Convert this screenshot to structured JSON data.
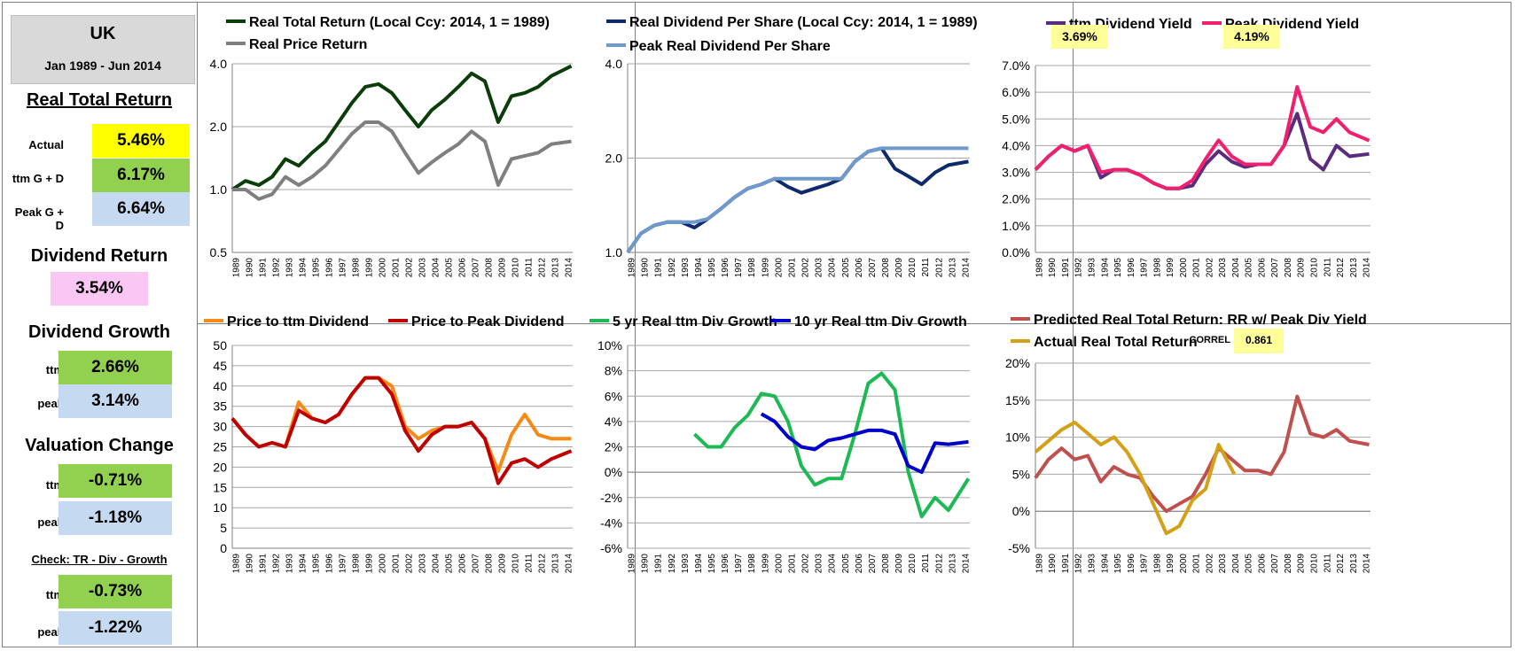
{
  "sidebar": {
    "country": "UK",
    "period": "Jan 1989 - Jun 2014",
    "real_total_return": {
      "title": "Real Total Return",
      "actual_label": "Actual",
      "actual": "5.46%",
      "ttm_label": "ttm  G + D",
      "ttm": "6.17%",
      "peak_label": "Peak  G + D",
      "peak": "6.64%"
    },
    "dividend_return": {
      "title": "Dividend Return",
      "value": "3.54%"
    },
    "dividend_growth": {
      "title": "Dividend Growth",
      "ttm_label": "ttm",
      "ttm": "2.66%",
      "peak_label": "peak",
      "peak": "3.14%"
    },
    "valuation_change": {
      "title": "Valuation Change",
      "ttm_label": "ttm",
      "ttm": "-0.71%",
      "peak_label": "peak",
      "peak": "-1.18%"
    },
    "check": {
      "title": "Check: TR - Div - Growth",
      "ttm_label": "ttm",
      "ttm": "-0.73%",
      "peak_label": "peak",
      "peak": "-1.22%"
    }
  },
  "colors": {
    "dark_green": "#0b3d0b",
    "gray": "#7f7f7f",
    "navy": "#0f2a6b",
    "light_blue": "#6f98cc",
    "purple": "#5b2c7e",
    "pink": "#f0206e",
    "orange": "#f58a16",
    "dark_red": "#c00000",
    "green": "#1db954",
    "blue": "#0000cc",
    "rose": "#c0504d",
    "gold": "#d4a017",
    "yellow_note": "#ffff99"
  },
  "years": [
    "1989",
    "1990",
    "1991",
    "1992",
    "1993",
    "1994",
    "1995",
    "1996",
    "1997",
    "1998",
    "1999",
    "2000",
    "2001",
    "2002",
    "2003",
    "2004",
    "2005",
    "2006",
    "2007",
    "2008",
    "2009",
    "2010",
    "2011",
    "2012",
    "2013",
    "2014"
  ],
  "chart_data": [
    {
      "id": "c1",
      "type": "line",
      "scale": "log",
      "ylim": [
        0.5,
        4.0
      ],
      "yticks": [
        0.5,
        1.0,
        2.0,
        4.0
      ],
      "ytick_labels": [
        "0.5",
        "1.0",
        "2.0",
        "4.0"
      ],
      "series": [
        {
          "name": "Real Total Return (Local Ccy: 2014, 1 = 1989)",
          "color": "#0b3d0b",
          "x": [
            1989,
            1990,
            1991,
            1992,
            1993,
            1994,
            1995,
            1996,
            1997,
            1998,
            1999,
            2000,
            2001,
            2002,
            2003,
            2004,
            2005,
            2006,
            2007,
            2008,
            2009,
            2010,
            2011,
            2012,
            2013,
            2014.5
          ],
          "y": [
            1.0,
            1.1,
            1.05,
            1.15,
            1.4,
            1.3,
            1.5,
            1.7,
            2.1,
            2.6,
            3.1,
            3.2,
            2.9,
            2.4,
            2.0,
            2.4,
            2.7,
            3.1,
            3.6,
            3.3,
            2.1,
            2.8,
            2.9,
            3.1,
            3.5,
            3.9
          ]
        },
        {
          "name": "Real Price Return",
          "color": "#7f7f7f",
          "x": [
            1989,
            1990,
            1991,
            1992,
            1993,
            1994,
            1995,
            1996,
            1997,
            1998,
            1999,
            2000,
            2001,
            2002,
            2003,
            2004,
            2005,
            2006,
            2007,
            2008,
            2009,
            2010,
            2011,
            2012,
            2013,
            2014.5
          ],
          "y": [
            1.0,
            1.0,
            0.9,
            0.95,
            1.15,
            1.05,
            1.15,
            1.3,
            1.55,
            1.85,
            2.1,
            2.1,
            1.9,
            1.5,
            1.2,
            1.35,
            1.5,
            1.65,
            1.9,
            1.7,
            1.05,
            1.4,
            1.45,
            1.5,
            1.65,
            1.7
          ]
        }
      ]
    },
    {
      "id": "c2",
      "type": "line",
      "scale": "log",
      "ylim": [
        1.0,
        4.0
      ],
      "yticks": [
        1.0,
        2.0,
        4.0
      ],
      "ytick_labels": [
        "1.0",
        "2.0",
        "4.0"
      ],
      "series": [
        {
          "name": "Real Dividend Per Share (Local Ccy: 2014, 1 = 1989)",
          "color": "#0f2a6b",
          "x": [
            1989,
            1990,
            1991,
            1992,
            1993,
            1994,
            1995,
            1996,
            1997,
            1998,
            1999,
            2000,
            2001,
            2002,
            2003,
            2004,
            2005,
            2006,
            2007,
            2008,
            2009,
            2010,
            2011,
            2012,
            2013,
            2014.5
          ],
          "y": [
            1.0,
            1.15,
            1.22,
            1.25,
            1.25,
            1.2,
            1.28,
            1.38,
            1.5,
            1.6,
            1.65,
            1.72,
            1.62,
            1.55,
            1.6,
            1.65,
            1.72,
            1.95,
            2.1,
            2.15,
            1.85,
            1.75,
            1.65,
            1.8,
            1.9,
            1.95
          ]
        },
        {
          "name": "Peak Real Dividend Per Share",
          "color": "#6f98cc",
          "x": [
            1989,
            1990,
            1991,
            1992,
            1993,
            1994,
            1995,
            1996,
            1997,
            1998,
            1999,
            2000,
            2001,
            2002,
            2003,
            2004,
            2005,
            2006,
            2007,
            2008,
            2009,
            2010,
            2011,
            2012,
            2013,
            2014.5
          ],
          "y": [
            1.0,
            1.15,
            1.22,
            1.25,
            1.25,
            1.25,
            1.28,
            1.38,
            1.5,
            1.6,
            1.65,
            1.72,
            1.72,
            1.72,
            1.72,
            1.72,
            1.72,
            1.95,
            2.1,
            2.15,
            2.15,
            2.15,
            2.15,
            2.15,
            2.15,
            2.15
          ]
        }
      ]
    },
    {
      "id": "c3",
      "type": "line",
      "scale": "linear",
      "ylim": [
        0,
        0.07
      ],
      "yticks": [
        0,
        0.01,
        0.02,
        0.03,
        0.04,
        0.05,
        0.06,
        0.07
      ],
      "ytick_labels": [
        "0.0%",
        "1.0%",
        "2.0%",
        "3.0%",
        "4.0%",
        "5.0%",
        "6.0%",
        "7.0%"
      ],
      "annotations": [
        "3.69%",
        "4.19%"
      ],
      "series": [
        {
          "name": "ttm Dividend Yield",
          "color": "#5b2c7e",
          "x": [
            1989,
            1990,
            1991,
            1992,
            1993,
            1994,
            1995,
            1996,
            1997,
            1998,
            1999,
            2000,
            2001,
            2002,
            2003,
            2004,
            2005,
            2006,
            2007,
            2008,
            2009,
            2010,
            2011,
            2012,
            2013,
            2014.5
          ],
          "y": [
            0.031,
            0.036,
            0.04,
            0.038,
            0.04,
            0.028,
            0.031,
            0.031,
            0.029,
            0.026,
            0.024,
            0.024,
            0.025,
            0.033,
            0.038,
            0.034,
            0.032,
            0.033,
            0.033,
            0.04,
            0.052,
            0.035,
            0.031,
            0.04,
            0.036,
            0.0369
          ]
        },
        {
          "name": "Peak Dividend Yield",
          "color": "#f0206e",
          "x": [
            1989,
            1990,
            1991,
            1992,
            1993,
            1994,
            1995,
            1996,
            1997,
            1998,
            1999,
            2000,
            2001,
            2002,
            2003,
            2004,
            2005,
            2006,
            2007,
            2008,
            2009,
            2010,
            2011,
            2012,
            2013,
            2014.5
          ],
          "y": [
            0.031,
            0.036,
            0.04,
            0.038,
            0.04,
            0.03,
            0.031,
            0.031,
            0.029,
            0.026,
            0.024,
            0.024,
            0.027,
            0.035,
            0.042,
            0.036,
            0.033,
            0.033,
            0.033,
            0.04,
            0.062,
            0.047,
            0.045,
            0.05,
            0.045,
            0.0419
          ]
        }
      ]
    },
    {
      "id": "c4",
      "type": "line",
      "scale": "linear",
      "ylim": [
        0,
        50
      ],
      "yticks": [
        0,
        5,
        10,
        15,
        20,
        25,
        30,
        35,
        40,
        45,
        50
      ],
      "ytick_labels": [
        "0",
        "5",
        "10",
        "15",
        "20",
        "25",
        "30",
        "35",
        "40",
        "45",
        "50"
      ],
      "series": [
        {
          "name": "Price to ttm Dividend",
          "color": "#f58a16",
          "x": [
            1989,
            1990,
            1991,
            1992,
            1993,
            1994,
            1995,
            1996,
            1997,
            1998,
            1999,
            2000,
            2001,
            2002,
            2003,
            2004,
            2005,
            2006,
            2007,
            2008,
            2009,
            2010,
            2011,
            2012,
            2013,
            2014.5
          ],
          "y": [
            32,
            28,
            25,
            26,
            25,
            36,
            32,
            31,
            33,
            38,
            42,
            42,
            40,
            30,
            27,
            29,
            30,
            30,
            31,
            27,
            19,
            28,
            33,
            28,
            27,
            27
          ]
        },
        {
          "name": "Price to Peak Dividend",
          "color": "#c00000",
          "x": [
            1989,
            1990,
            1991,
            1992,
            1993,
            1994,
            1995,
            1996,
            1997,
            1998,
            1999,
            2000,
            2001,
            2002,
            2003,
            2004,
            2005,
            2006,
            2007,
            2008,
            2009,
            2010,
            2011,
            2012,
            2013,
            2014.5
          ],
          "y": [
            32,
            28,
            25,
            26,
            25,
            34,
            32,
            31,
            33,
            38,
            42,
            42,
            38,
            29,
            24,
            28,
            30,
            30,
            31,
            27,
            16,
            21,
            22,
            20,
            22,
            24
          ]
        }
      ]
    },
    {
      "id": "c5",
      "type": "line",
      "scale": "linear",
      "ylim": [
        -0.06,
        0.1
      ],
      "yticks": [
        -0.06,
        -0.04,
        -0.02,
        0,
        0.02,
        0.04,
        0.06,
        0.08,
        0.1
      ],
      "ytick_labels": [
        "-6%",
        "-4%",
        "-2%",
        "0%",
        "2%",
        "4%",
        "6%",
        "8%",
        "10%"
      ],
      "series": [
        {
          "name": "5 yr Real ttm Div Growth",
          "color": "#1db954",
          "x": [
            1994,
            1995,
            1996,
            1997,
            1998,
            1999,
            2000,
            2001,
            2002,
            2003,
            2004,
            2005,
            2006,
            2007,
            2008,
            2009,
            2010,
            2011,
            2012,
            2013,
            2014.5
          ],
          "y": [
            0.03,
            0.02,
            0.02,
            0.035,
            0.045,
            0.062,
            0.06,
            0.04,
            0.005,
            -0.01,
            -0.005,
            -0.005,
            0.03,
            0.07,
            0.078,
            0.065,
            0.0,
            -0.035,
            -0.02,
            -0.03,
            -0.005
          ]
        },
        {
          "name": "10 yr Real ttm Div Growth",
          "color": "#0000cc",
          "x": [
            1999,
            2000,
            2001,
            2002,
            2003,
            2004,
            2005,
            2006,
            2007,
            2008,
            2009,
            2010,
            2011,
            2012,
            2013,
            2014.5
          ],
          "y": [
            0.046,
            0.04,
            0.028,
            0.02,
            0.018,
            0.025,
            0.027,
            0.03,
            0.033,
            0.033,
            0.03,
            0.005,
            0.0,
            0.023,
            0.022,
            0.024
          ]
        }
      ]
    },
    {
      "id": "c6",
      "type": "line",
      "scale": "linear",
      "ylim": [
        -0.05,
        0.2
      ],
      "yticks": [
        -0.05,
        0,
        0.05,
        0.1,
        0.15,
        0.2
      ],
      "ytick_labels": [
        "-5%",
        "0%",
        "5%",
        "10%",
        "15%",
        "20%"
      ],
      "correl_label": "CORREL",
      "correl_value": "0.861",
      "series": [
        {
          "name": "Predicted Real Total Return: RR w/ Peak Div Yield",
          "color": "#c0504d",
          "x": [
            1989,
            1990,
            1991,
            1992,
            1993,
            1994,
            1995,
            1996,
            1997,
            1998,
            1999,
            2000,
            2001,
            2002,
            2003,
            2004,
            2005,
            2006,
            2007,
            2008,
            2009,
            2010,
            2011,
            2012,
            2013,
            2014.5
          ],
          "y": [
            0.045,
            0.07,
            0.085,
            0.07,
            0.075,
            0.04,
            0.06,
            0.05,
            0.045,
            0.02,
            0.0,
            0.01,
            0.02,
            0.05,
            0.085,
            0.07,
            0.055,
            0.055,
            0.05,
            0.08,
            0.155,
            0.105,
            0.1,
            0.11,
            0.095,
            0.09
          ]
        },
        {
          "name": "Actual Real Total Return",
          "color": "#d4a017",
          "x": [
            1989,
            1990,
            1991,
            1992,
            1993,
            1994,
            1995,
            1996,
            1997,
            1998,
            1999,
            2000,
            2001,
            2002,
            2003,
            2004.2
          ],
          "y": [
            0.08,
            0.095,
            0.11,
            0.12,
            0.105,
            0.09,
            0.1,
            0.08,
            0.05,
            0.01,
            -0.03,
            -0.02,
            0.015,
            0.03,
            0.09,
            0.05
          ]
        }
      ]
    }
  ]
}
